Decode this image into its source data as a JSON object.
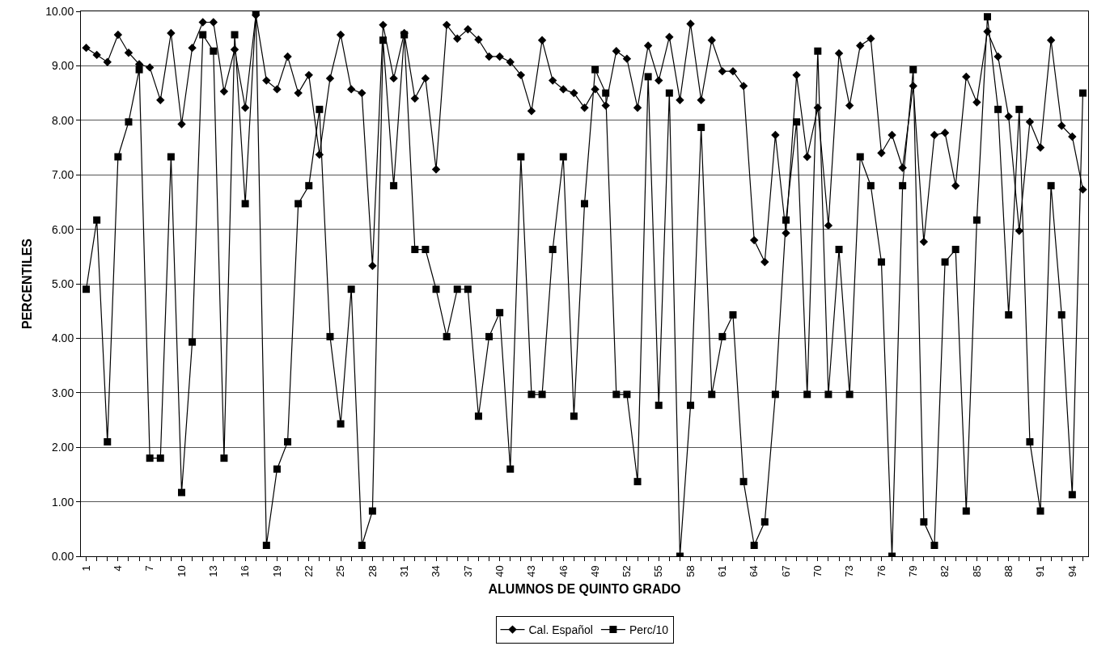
{
  "chart_data": {
    "type": "line",
    "xlabel": "ALUMNOS DE QUINTO GRADO",
    "ylabel": "PERCENTILES",
    "categories": [
      "1",
      null,
      null,
      "4",
      null,
      null,
      "7",
      null,
      null,
      "10",
      null,
      null,
      "13",
      null,
      null,
      "16",
      null,
      null,
      "19",
      null,
      null,
      "22",
      null,
      null,
      "25",
      null,
      null,
      "28",
      null,
      null,
      "31",
      null,
      null,
      "34",
      null,
      null,
      "37",
      null,
      null,
      "40",
      null,
      null,
      "43",
      null,
      null,
      "46",
      null,
      null,
      "49",
      null,
      null,
      "52",
      null,
      null,
      "55",
      null,
      null,
      "58",
      null,
      null,
      "61",
      null,
      null,
      "64",
      null,
      null,
      "67",
      null,
      null,
      "70",
      null,
      null,
      "73",
      null,
      null,
      "76",
      null,
      null,
      "79",
      null,
      null,
      "82",
      null,
      null,
      "85",
      null,
      null,
      "88",
      null,
      null,
      "91",
      null,
      null,
      "94",
      null
    ],
    "series": [
      {
        "name": "Cal. Español",
        "color": "#000000",
        "marker": "diamond",
        "values": [
          9.33,
          9.2,
          9.07,
          9.57,
          9.24,
          9.03,
          8.97,
          8.37,
          9.6,
          7.93,
          9.33,
          9.8,
          9.8,
          8.53,
          9.3,
          8.23,
          9.93,
          8.73,
          8.57,
          9.17,
          8.5,
          8.83,
          7.37,
          8.77,
          9.57,
          8.57,
          8.5,
          5.33,
          9.75,
          8.77,
          9.6,
          8.4,
          8.77,
          7.1,
          9.75,
          9.5,
          9.67,
          9.48,
          9.17,
          9.17,
          9.07,
          8.83,
          8.17,
          9.47,
          8.73,
          8.57,
          8.5,
          8.23,
          8.57,
          8.27,
          9.27,
          9.13,
          8.23,
          9.37,
          8.73,
          9.53,
          8.37,
          9.77,
          8.37,
          9.47,
          8.9,
          8.9,
          8.63,
          5.8,
          5.4,
          7.73,
          5.93,
          8.83,
          7.33,
          8.23,
          6.07,
          9.23,
          8.27,
          9.37,
          9.5,
          7.4,
          7.73,
          7.13,
          8.63,
          5.77,
          7.73,
          7.77,
          6.8,
          8.8,
          8.33,
          9.63,
          9.17,
          8.07,
          5.97,
          7.97,
          7.5,
          9.47,
          7.9,
          7.7,
          6.73
        ]
      },
      {
        "name": "Perc/10",
        "color": "#000000",
        "marker": "square",
        "values": [
          4.9,
          6.17,
          2.1,
          7.33,
          7.97,
          8.93,
          1.8,
          1.8,
          7.33,
          1.17,
          3.93,
          9.57,
          9.27,
          1.8,
          9.57,
          6.47,
          10.0,
          0.2,
          1.6,
          2.1,
          6.47,
          6.8,
          8.2,
          4.03,
          2.43,
          4.9,
          0.2,
          0.83,
          9.47,
          6.8,
          9.57,
          5.63,
          5.63,
          4.9,
          4.03,
          4.9,
          4.9,
          2.57,
          4.03,
          4.47,
          1.6,
          7.33,
          2.97,
          2.97,
          5.63,
          7.33,
          2.57,
          6.47,
          8.93,
          8.5,
          2.97,
          2.97,
          1.37,
          8.8,
          2.77,
          8.5,
          0.0,
          2.77,
          7.87,
          2.97,
          4.03,
          4.43,
          1.37,
          0.2,
          0.63,
          2.97,
          6.17,
          7.97,
          2.97,
          9.27,
          2.97,
          5.63,
          2.97,
          7.33,
          6.8,
          5.4,
          0.0,
          6.8,
          8.93,
          0.63,
          0.2,
          5.4,
          5.63,
          0.83,
          6.17,
          9.9,
          8.2,
          4.43,
          8.2,
          2.1,
          0.83,
          6.8,
          4.43,
          1.13,
          8.5
        ]
      }
    ],
    "ylim": [
      0,
      10
    ],
    "yticks": [
      {
        "value": 0,
        "label": "0.00"
      },
      {
        "value": 1,
        "label": "1.00"
      },
      {
        "value": 2,
        "label": "2.00"
      },
      {
        "value": 3,
        "label": "3.00"
      },
      {
        "value": 4,
        "label": "4.00"
      },
      {
        "value": 5,
        "label": "5.00"
      },
      {
        "value": 6,
        "label": "6.00"
      },
      {
        "value": 7,
        "label": "7.00"
      },
      {
        "value": 8,
        "label": "8.00"
      },
      {
        "value": 9,
        "label": "9.00"
      },
      {
        "value": 10,
        "label": "10.00"
      }
    ],
    "grid": "y",
    "legend": "bottom",
    "line_style": "solid"
  }
}
